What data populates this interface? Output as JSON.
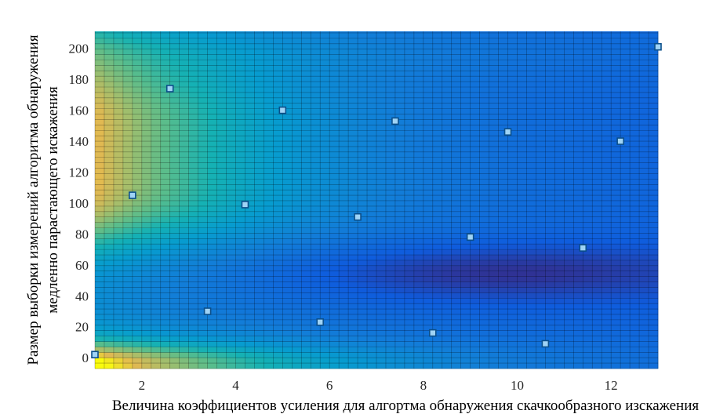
{
  "chart_data": {
    "type": "heatmap",
    "title": "",
    "xlabel": "Величина коэффициентов усиления для алгортма обнаружения скачкообразного изскажения",
    "ylabel_lines": [
      "Размер выборки измерений алгоритма обнаружения",
      "медленно парастающего искажения"
    ],
    "xlim": [
      1,
      13
    ],
    "ylim": [
      -7,
      211
    ],
    "x_ticks": [
      2,
      4,
      6,
      8,
      10,
      12
    ],
    "y_ticks": [
      0,
      20,
      40,
      60,
      80,
      100,
      120,
      140,
      160,
      180,
      200
    ],
    "grid": true,
    "colormap": "parula",
    "surface_grid": {
      "x_step": 0.2,
      "y_step": 3.5
    },
    "surface_note": "Smooth response surface: high (yellow) near x=1–3 and y≈0 and y≈130–190; minimum (dark blue) near x≈8–11, y≈55.",
    "marker_color": "#9fd3f5",
    "marker_edge": "#0b4f8a",
    "sample_points": [
      {
        "x": 1.0,
        "y": 2
      },
      {
        "x": 1.8,
        "y": 105
      },
      {
        "x": 2.6,
        "y": 174
      },
      {
        "x": 3.4,
        "y": 30
      },
      {
        "x": 4.2,
        "y": 99
      },
      {
        "x": 5.0,
        "y": 160
      },
      {
        "x": 5.8,
        "y": 23
      },
      {
        "x": 6.6,
        "y": 91
      },
      {
        "x": 7.4,
        "y": 153
      },
      {
        "x": 8.2,
        "y": 16
      },
      {
        "x": 9.0,
        "y": 78
      },
      {
        "x": 9.8,
        "y": 146
      },
      {
        "x": 10.6,
        "y": 9
      },
      {
        "x": 11.4,
        "y": 71
      },
      {
        "x": 12.2,
        "y": 140
      },
      {
        "x": 13.0,
        "y": 201
      }
    ]
  }
}
